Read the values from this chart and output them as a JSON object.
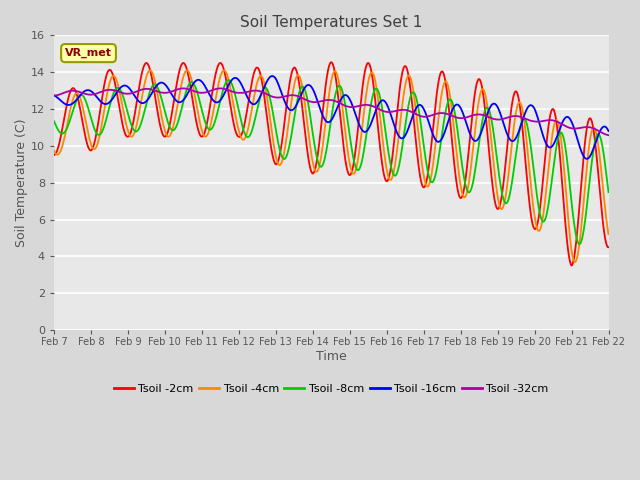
{
  "title": "Soil Temperatures Set 1",
  "xlabel": "Time",
  "ylabel": "Soil Temperature (C)",
  "ylim": [
    0,
    16
  ],
  "yticks": [
    0,
    2,
    4,
    6,
    8,
    10,
    12,
    14,
    16
  ],
  "x_labels": [
    "Feb 7",
    "Feb 8",
    "Feb 9",
    "Feb 10",
    "Feb 11",
    "Feb 12",
    "Feb 13",
    "Feb 14",
    "Feb 15",
    "Feb 16",
    "Feb 17",
    "Feb 18",
    "Feb 19",
    "Feb 20",
    "Feb 21",
    "Feb 22"
  ],
  "colors": {
    "Tsoil -2cm": "#ff0000",
    "Tsoil -4cm": "#ff8800",
    "Tsoil -8cm": "#00cc00",
    "Tsoil -16cm": "#0000ff",
    "Tsoil -32cm": "#aa00aa"
  },
  "annotation_text": "VR_met",
  "fig_bg": "#d8d8d8",
  "plot_bg": "#e8e8e8",
  "grid_color": "#ffffff"
}
